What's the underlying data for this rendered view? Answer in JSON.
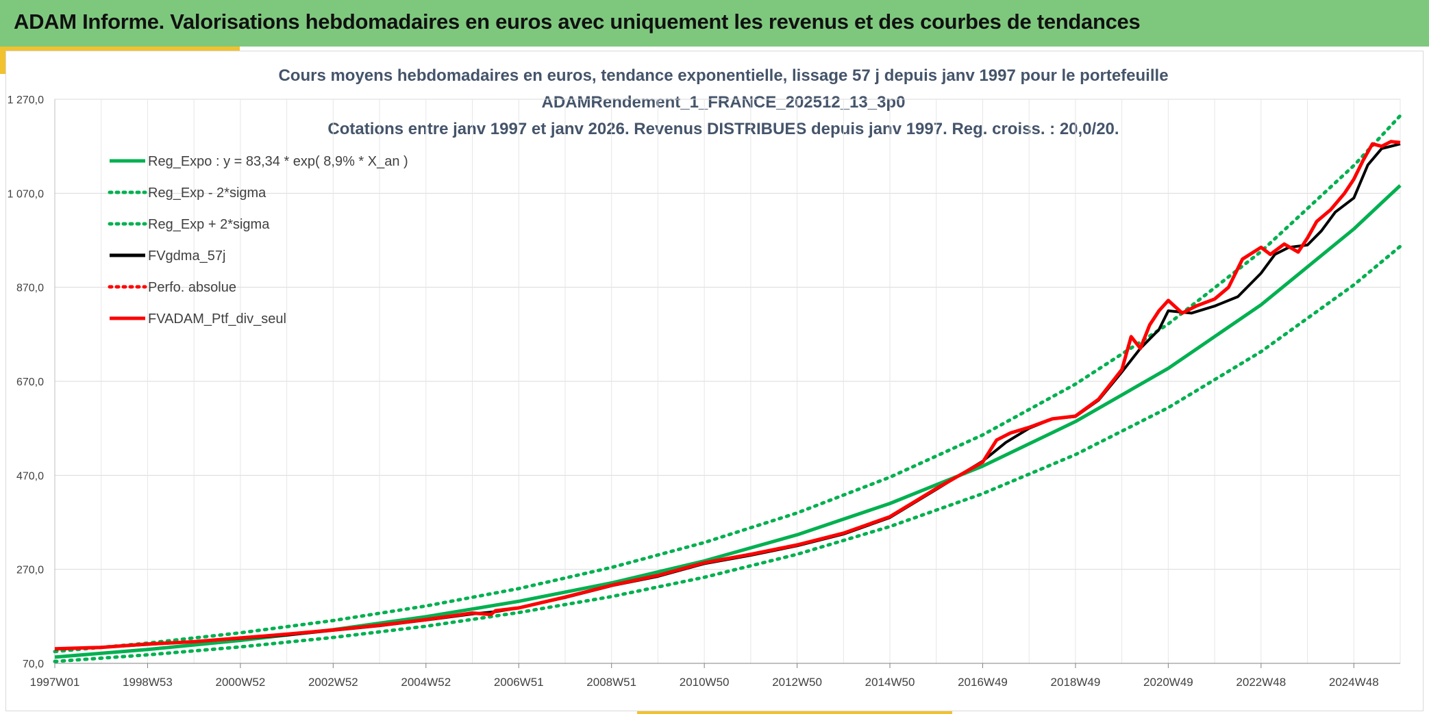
{
  "header": {
    "title": "ADAM Informe. Valorisations hebdomadaires en euros avec uniquement les revenus et des courbes de tendances"
  },
  "colors": {
    "header_bg": "#7ec87e",
    "accent": "#f2c12e",
    "trend": "#00b050",
    "ma": "#000000",
    "portfolio": "#ff0000",
    "grid": "#d9d9d9"
  },
  "chart_data": {
    "type": "line",
    "title_lines": [
      "Cours moyens hebdomadaires en euros, tendance exponentielle, lissage 57 j depuis janv 1997 pour le portefeuille",
      "ADAMRendement_1_FRANCE_202512_13_3p0",
      "Cotations entre janv 1997 et janv 2026. Revenus DISTRIBUES depuis janv 1997. Reg. croiss. : 20,0/20."
    ],
    "xlabel": "",
    "ylabel": "",
    "ylim": [
      70,
      1270
    ],
    "y_ticks": [
      70,
      270,
      470,
      670,
      870,
      1070,
      1270
    ],
    "y_tick_labels": [
      "70,0",
      "270,0",
      "470,0",
      "670,0",
      "870,0",
      "1 070,0",
      "1 270,0"
    ],
    "xlim": [
      1997.0,
      2026.0
    ],
    "x_ticks": [
      1997.0,
      1999.0,
      2001.0,
      2003.0,
      2005.0,
      2007.0,
      2009.0,
      2011.0,
      2013.0,
      2015.0,
      2017.0,
      2019.0,
      2021.0,
      2023.0,
      2025.0
    ],
    "x_tick_labels": [
      "1997W01",
      "1998W53",
      "2000W52",
      "2002W52",
      "2004W52",
      "2006W51",
      "2008W51",
      "2010W50",
      "2012W50",
      "2014W50",
      "2016W49",
      "2018W49",
      "2020W49",
      "2022W48",
      "2024W48"
    ],
    "grid": true,
    "legend_position": "top-left",
    "legend": [
      {
        "label": "Reg_Expo : y = 83,34 * exp( 8,9% *  X_an )",
        "color": "#00b050",
        "style": "solid"
      },
      {
        "label": "Reg_Exp - 2*sigma",
        "color": "#00b050",
        "style": "dotted"
      },
      {
        "label": "Reg_Exp + 2*sigma",
        "color": "#00b050",
        "style": "dotted"
      },
      {
        "label": "FVgdma_57j",
        "color": "#000000",
        "style": "solid"
      },
      {
        "label": "Perfo. absolue",
        "color": "#ff0000",
        "style": "dotted"
      },
      {
        "label": "FVADAM_Ptf_div_seul",
        "color": "#ff0000",
        "style": "solid"
      }
    ],
    "series": [
      {
        "name": "Reg_Expo",
        "x": [
          1997.0,
          1999.0,
          2001.0,
          2003.0,
          2005.0,
          2007.0,
          2009.0,
          2011.0,
          2013.0,
          2015.0,
          2017.0,
          2019.0,
          2021.0,
          2023.0,
          2025.0,
          2026.0
        ],
        "values": [
          83.3,
          99.5,
          118.8,
          141.7,
          169.2,
          202.0,
          241.1,
          287.8,
          343.5,
          410.1,
          489.5,
          584.3,
          697.5,
          832.7,
          994.0,
          1086.7
        ]
      },
      {
        "name": "Reg_Exp - 2*sigma",
        "x": [
          1997.0,
          1999.0,
          2001.0,
          2003.0,
          2005.0,
          2007.0,
          2009.0,
          2011.0,
          2013.0,
          2015.0,
          2017.0,
          2019.0,
          2021.0,
          2023.0,
          2025.0,
          2026.0
        ],
        "values": [
          74.0,
          88.0,
          105.0,
          125.0,
          149.0,
          178.0,
          212.0,
          253.0,
          302.0,
          361.0,
          431.0,
          514.0,
          614.0,
          733.0,
          875.0,
          957.0
        ]
      },
      {
        "name": "Reg_Exp + 2*sigma",
        "x": [
          1997.0,
          1999.0,
          2001.0,
          2003.0,
          2005.0,
          2007.0,
          2009.0,
          2011.0,
          2013.0,
          2015.0,
          2017.0,
          2019.0,
          2021.0,
          2023.0,
          2025.0,
          2026.0
        ],
        "values": [
          95.0,
          113.0,
          135.0,
          161.0,
          192.0,
          229.0,
          274.0,
          327.0,
          390.0,
          466.0,
          556.0,
          664.0,
          792.0,
          946.0,
          1129.0,
          1235.0
        ]
      },
      {
        "name": "FVgdma_57j",
        "x": [
          1997.0,
          1998.0,
          1999.0,
          2000.0,
          2001.0,
          2002.0,
          2003.0,
          2004.0,
          2005.0,
          2006.0,
          2006.5,
          2007.0,
          2008.0,
          2009.0,
          2010.0,
          2011.0,
          2012.0,
          2013.0,
          2014.0,
          2015.0,
          2016.0,
          2017.0,
          2017.5,
          2018.0,
          2018.5,
          2019.0,
          2019.5,
          2020.0,
          2020.4,
          2020.8,
          2021.0,
          2021.5,
          2022.0,
          2022.5,
          2023.0,
          2023.3,
          2023.6,
          2024.0,
          2024.3,
          2024.6,
          2025.0,
          2025.3,
          2025.6,
          2026.0
        ],
        "values": [
          100.0,
          104.0,
          110.0,
          116.0,
          123.0,
          130.0,
          140.0,
          150.0,
          162.0,
          175.0,
          180.0,
          188.0,
          210.0,
          235.0,
          255.0,
          282.0,
          300.0,
          320.0,
          345.0,
          380.0,
          440.0,
          500.0,
          540.0,
          570.0,
          590.0,
          595.0,
          630.0,
          690.0,
          740.0,
          780.0,
          820.0,
          815.0,
          830.0,
          850.0,
          900.0,
          940.0,
          955.0,
          960.0,
          990.0,
          1030.0,
          1060.0,
          1130.0,
          1165.0,
          1175.0
        ]
      },
      {
        "name": "FVADAM_Ptf_div_seul",
        "x": [
          1997.0,
          1998.0,
          1999.0,
          2000.0,
          2001.0,
          2002.0,
          2003.0,
          2004.0,
          2005.0,
          2006.0,
          2006.4,
          2006.5,
          2007.0,
          2008.0,
          2009.0,
          2010.0,
          2011.0,
          2012.0,
          2013.0,
          2014.0,
          2015.0,
          2016.0,
          2017.0,
          2017.3,
          2017.6,
          2018.0,
          2018.5,
          2019.0,
          2019.5,
          2020.0,
          2020.2,
          2020.4,
          2020.6,
          2020.8,
          2021.0,
          2021.3,
          2021.6,
          2022.0,
          2022.3,
          2022.6,
          2023.0,
          2023.2,
          2023.5,
          2023.8,
          2024.0,
          2024.2,
          2024.5,
          2024.8,
          2025.0,
          2025.2,
          2025.4,
          2025.6,
          2025.8,
          2026.0
        ],
        "values": [
          101.0,
          104.0,
          111.0,
          116.0,
          124.0,
          132.0,
          141.0,
          151.0,
          163.0,
          177.0,
          174.0,
          182.0,
          188.0,
          211.0,
          236.0,
          257.0,
          284.0,
          302.0,
          322.0,
          347.0,
          382.0,
          442.0,
          498.0,
          545.0,
          560.0,
          572.0,
          590.0,
          596.0,
          632.0,
          695.0,
          765.0,
          740.0,
          790.0,
          820.0,
          842.0,
          815.0,
          830.0,
          845.0,
          870.0,
          930.0,
          955.0,
          940.0,
          962.0,
          945.0,
          975.0,
          1010.0,
          1035.0,
          1070.0,
          1100.0,
          1140.0,
          1175.0,
          1170.0,
          1180.0,
          1178.0
        ]
      }
    ]
  }
}
